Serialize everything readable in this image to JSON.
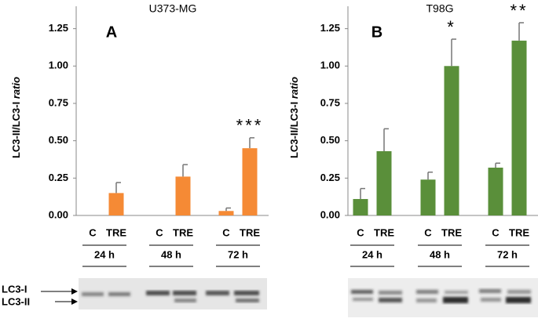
{
  "chart_data": [
    {
      "type": "bar",
      "title": "U373-MG",
      "panel": "A",
      "ylabel": "LC3-II/LC3-I",
      "ylabel_italic": "ratio",
      "categories": [
        "24 h",
        "48 h",
        "72 h"
      ],
      "series": [
        {
          "name": "C",
          "color": "#f58a35",
          "values": [
            0,
            0,
            0.03
          ],
          "errors": [
            null,
            null,
            0.02
          ]
        },
        {
          "name": "TRE",
          "color": "#f58a35",
          "values": [
            0.15,
            0.26,
            0.45
          ],
          "errors": [
            0.07,
            0.08,
            0.07
          ]
        }
      ],
      "annotations": [
        {
          "category": "72 h",
          "series": "TRE",
          "text": "***"
        }
      ],
      "ylim": [
        0,
        1.4
      ],
      "yticks": [
        {
          "value": 0,
          "label": "0.00"
        },
        {
          "value": 0.25,
          "label": "0.25"
        },
        {
          "value": 0.5,
          "label": "0.50"
        },
        {
          "value": 0.75,
          "label": "0.75"
        },
        {
          "value": 1,
          "label": "1.00"
        },
        {
          "value": 1.25,
          "label": "1.25"
        }
      ],
      "blot_labels": [
        "LC3-I",
        "LC3-II"
      ]
    },
    {
      "type": "bar",
      "title": "T98G",
      "panel": "B",
      "ylabel": "LC3-II/LC3-I",
      "ylabel_italic": "ratio",
      "categories": [
        "24 h",
        "48 h",
        "72 h"
      ],
      "series": [
        {
          "name": "C",
          "color": "#5a8f3a",
          "values": [
            0.11,
            0.24,
            0.32
          ],
          "errors": [
            0.07,
            0.05,
            0.03
          ]
        },
        {
          "name": "TRE",
          "color": "#5a8f3a",
          "values": [
            0.43,
            1.0,
            1.17
          ],
          "errors": [
            0.15,
            0.18,
            0.12
          ]
        }
      ],
      "annotations": [
        {
          "category": "48 h",
          "series": "TRE",
          "text": "*"
        },
        {
          "category": "72 h",
          "series": "TRE",
          "text": "**"
        }
      ],
      "ylim": [
        0,
        1.4
      ],
      "yticks": [
        {
          "value": 0,
          "label": "0.00"
        },
        {
          "value": 0.25,
          "label": "0.25"
        },
        {
          "value": 0.5,
          "label": "0.50"
        },
        {
          "value": 0.75,
          "label": "0.75"
        },
        {
          "value": 1,
          "label": "1.00"
        },
        {
          "value": 1.25,
          "label": "1.25"
        }
      ]
    }
  ]
}
